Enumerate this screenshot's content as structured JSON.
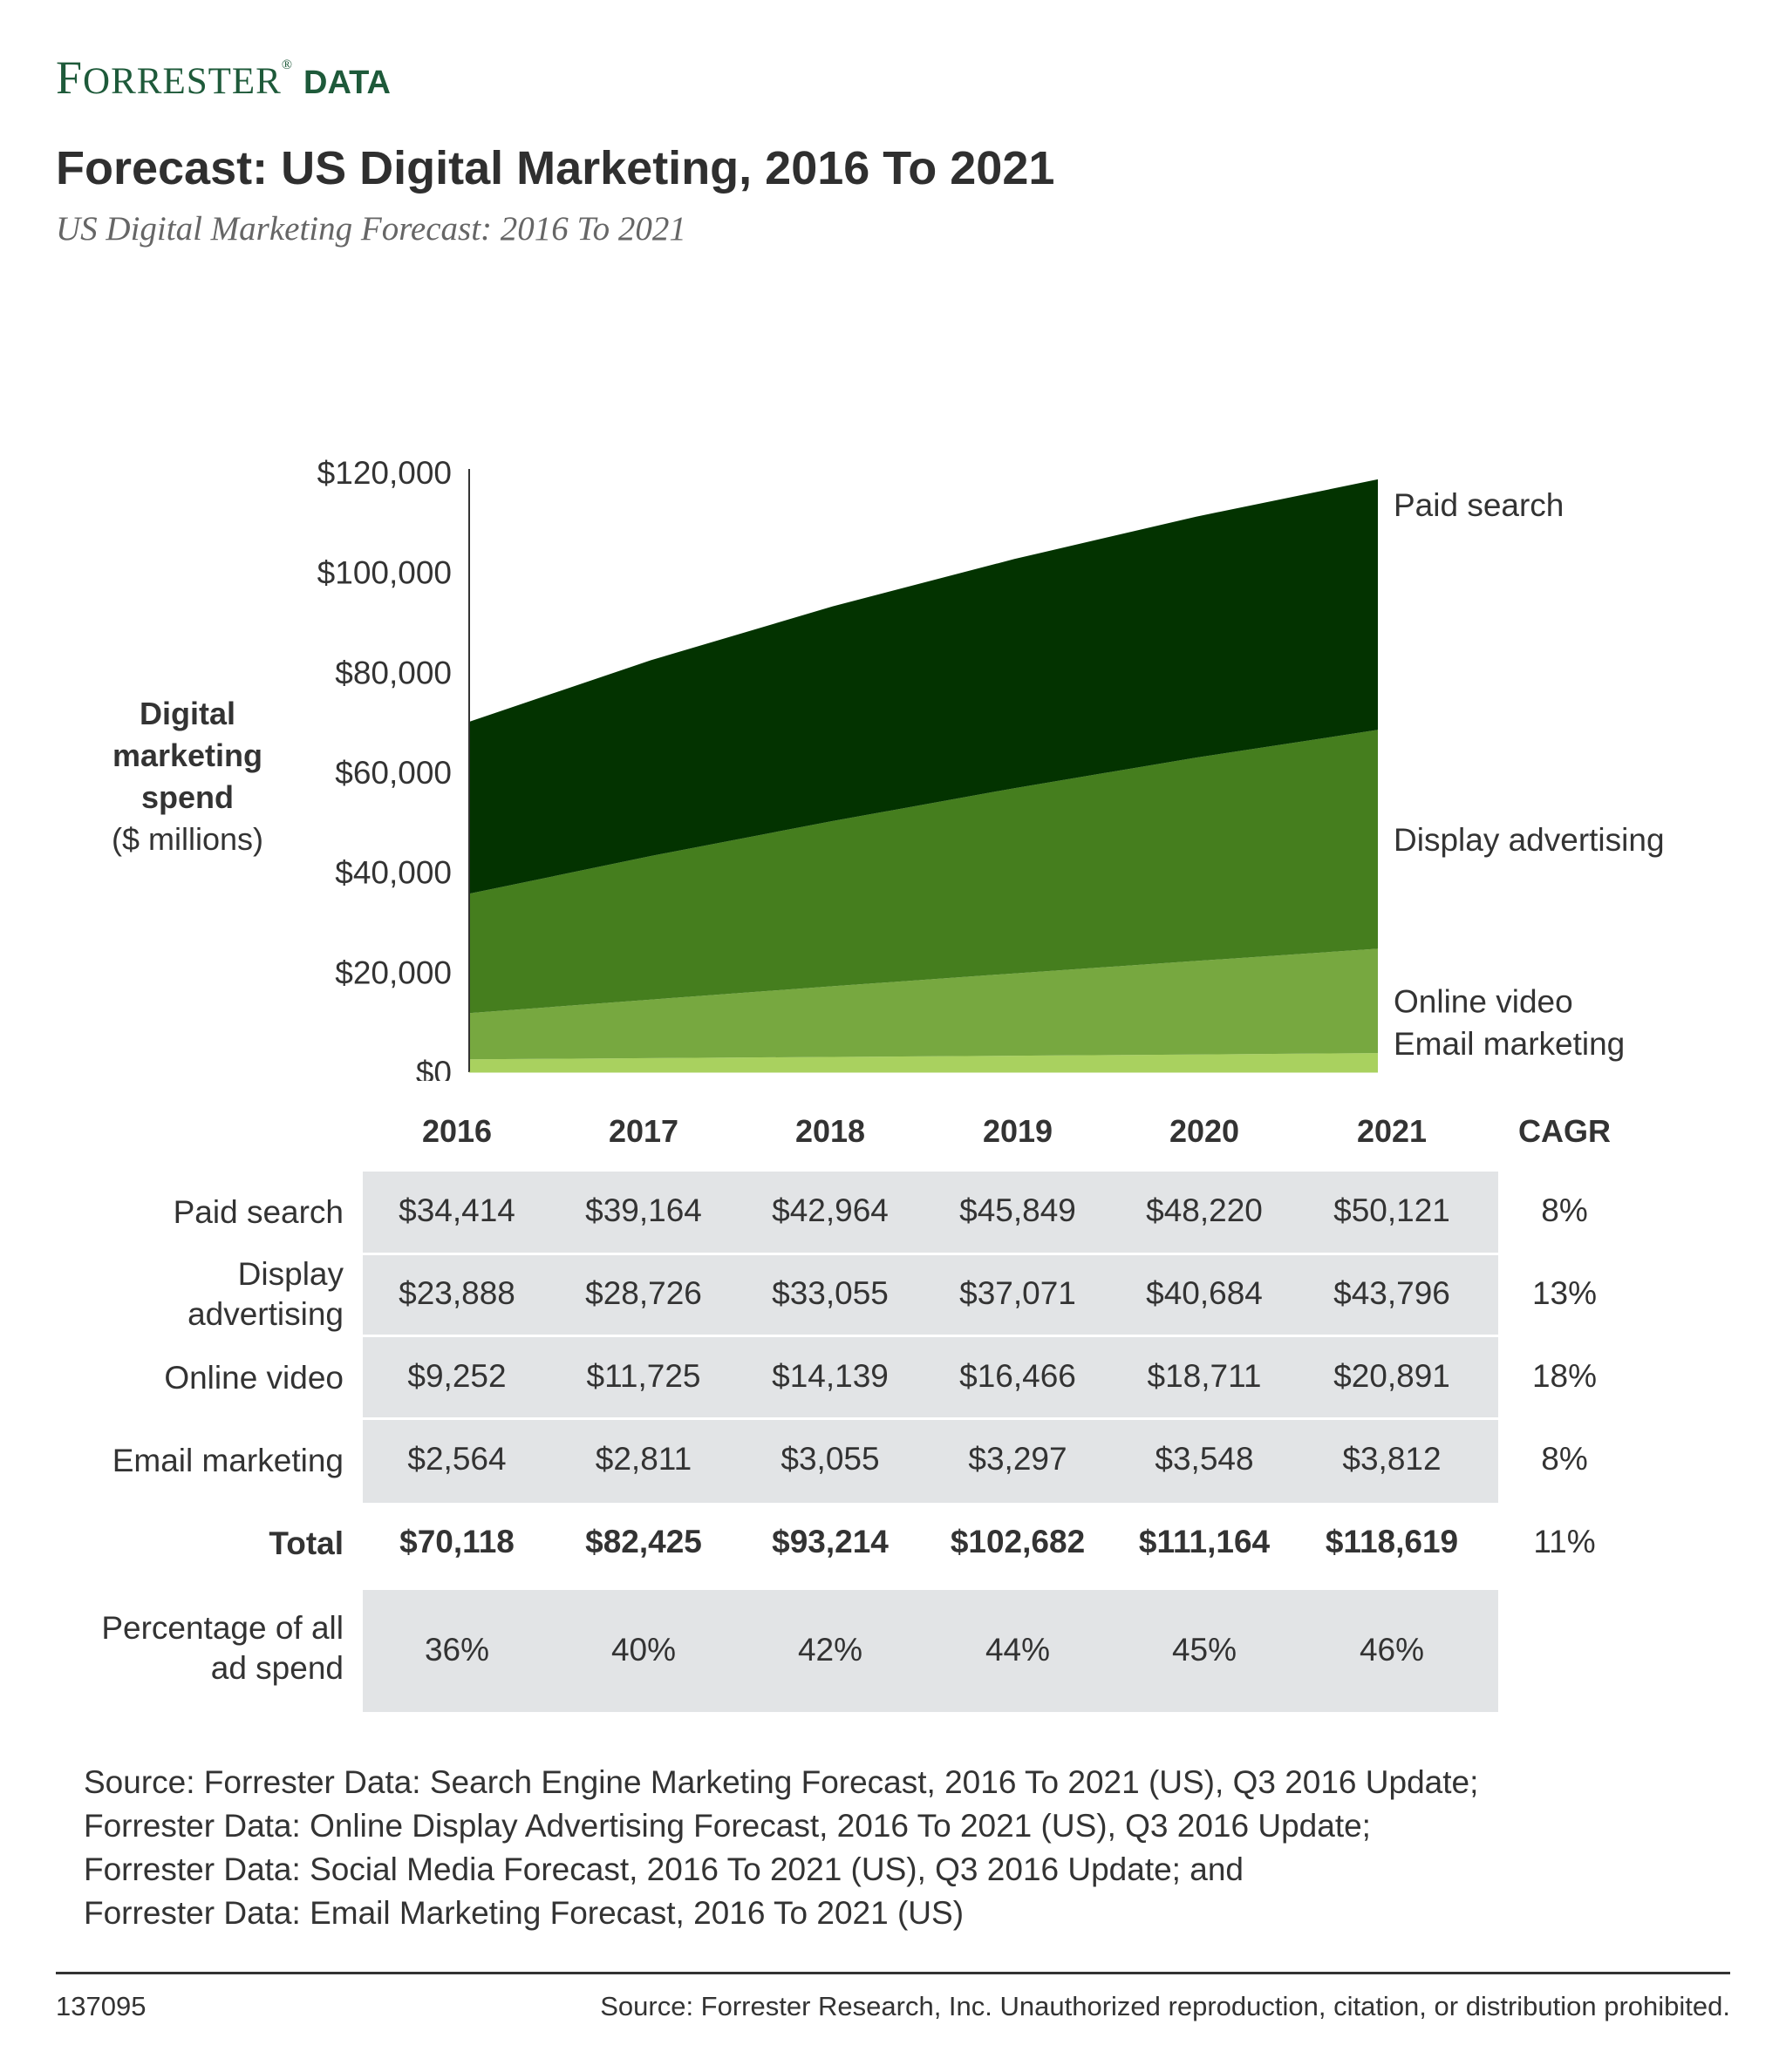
{
  "brand": {
    "name": "Forrester",
    "mark": "®",
    "suffix": "DATA"
  },
  "title": "Forecast: US Digital Marketing, 2016 To 2021",
  "subtitle": "US Digital Marketing Forecast: 2016 To 2021",
  "chart_data": {
    "type": "area",
    "stacked": true,
    "x": [
      "2016",
      "2017",
      "2018",
      "2019",
      "2020",
      "2021"
    ],
    "ylabel_bold": "Digital marketing spend",
    "ylabel_unit": "($ millions)",
    "ylim": [
      0,
      120000
    ],
    "yticks": [
      "$0",
      "$20,000",
      "$40,000",
      "$60,000",
      "$80,000",
      "$100,000",
      "$120,000"
    ],
    "legend_placement": "right of plot, beside each band",
    "series": [
      {
        "name": "Email marketing",
        "color": "#a9d15f",
        "values": [
          2564,
          2811,
          3055,
          3297,
          3548,
          3812
        ]
      },
      {
        "name": "Online video",
        "color": "#77a840",
        "values": [
          9252,
          11725,
          14139,
          16466,
          18711,
          20891
        ]
      },
      {
        "name": "Display advertising",
        "color": "#457e1e",
        "values": [
          23888,
          28726,
          33055,
          37071,
          40684,
          43796
        ]
      },
      {
        "name": "Paid search",
        "color": "#033300",
        "values": [
          34414,
          39164,
          42964,
          45849,
          48220,
          50121
        ]
      }
    ]
  },
  "table": {
    "years": [
      "2016",
      "2017",
      "2018",
      "2019",
      "2020",
      "2021"
    ],
    "cagr_header": "CAGR",
    "rows": [
      {
        "label": "Paid search",
        "values": [
          "$34,414",
          "$39,164",
          "$42,964",
          "$45,849",
          "$48,220",
          "$50,121"
        ],
        "cagr": "8%"
      },
      {
        "label": "Display advertising",
        "values": [
          "$23,888",
          "$28,726",
          "$33,055",
          "$37,071",
          "$40,684",
          "$43,796"
        ],
        "cagr": "13%"
      },
      {
        "label": "Online video",
        "values": [
          "$9,252",
          "$11,725",
          "$14,139",
          "$16,466",
          "$18,711",
          "$20,891"
        ],
        "cagr": "18%"
      },
      {
        "label": "Email marketing",
        "values": [
          "$2,564",
          "$2,811",
          "$3,055",
          "$3,297",
          "$3,548",
          "$3,812"
        ],
        "cagr": "8%"
      }
    ],
    "total": {
      "label": "Total",
      "values": [
        "$70,118",
        "$82,425",
        "$93,214",
        "$102,682",
        "$111,164",
        "$118,619"
      ],
      "cagr": "11%"
    },
    "percentage": {
      "label": "Percentage of all ad spend",
      "values": [
        "36%",
        "40%",
        "42%",
        "44%",
        "45%",
        "46%"
      ]
    }
  },
  "source_lines": [
    "Source: Forrester Data: Search Engine Marketing Forecast, 2016 To 2021 (US), Q3 2016 Update;",
    "Forrester Data: Online Display Advertising Forecast, 2016 To 2021 (US), Q3 2016 Update;",
    "Forrester Data: Social Media Forecast, 2016 To 2021 (US), Q3 2016 Update; and",
    "Forrester Data: Email Marketing Forecast, 2016 To 2021 (US)"
  ],
  "footer": {
    "id": "137095",
    "note": "Source: Forrester Research, Inc. Unauthorized reproduction, citation, or distribution prohibited."
  }
}
